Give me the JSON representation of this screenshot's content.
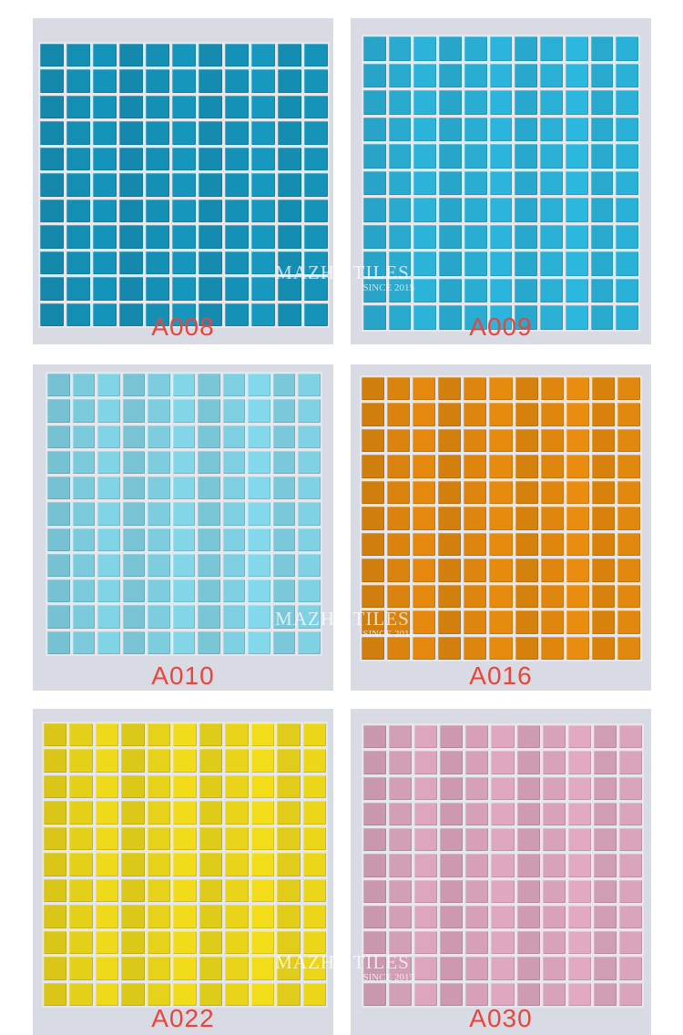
{
  "watermark": {
    "brand": "MAZHE TILES",
    "since": "SINCE 2015"
  },
  "panels": [
    {
      "code": "A008",
      "color": "#1592b8"
    },
    {
      "code": "A009",
      "color": "#2ab0d6"
    },
    {
      "code": "A010",
      "color": "#7fd0e2"
    },
    {
      "code": "A016",
      "color": "#e0870e"
    },
    {
      "code": "A022",
      "color": "#ead51a"
    },
    {
      "code": "A030",
      "color": "#d9a3bb"
    }
  ]
}
